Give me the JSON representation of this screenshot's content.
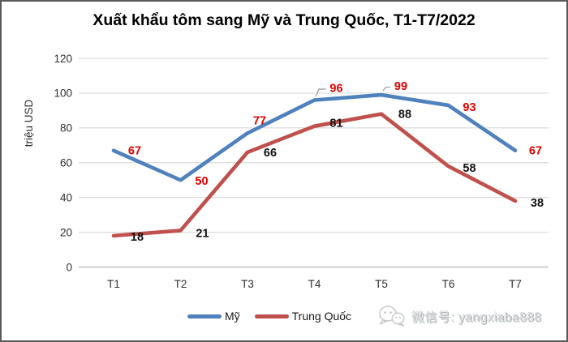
{
  "title": "Xuất khẩu tôm sang Mỹ và Trung Quốc, T1-T7/2022",
  "chart_data": {
    "type": "line",
    "categories": [
      "T1",
      "T2",
      "T3",
      "T4",
      "T5",
      "T6",
      "T7"
    ],
    "series": [
      {
        "name": "Mỹ",
        "color": "#4f81bd",
        "label_color": "#e20000",
        "values": [
          67,
          50,
          77,
          96,
          99,
          93,
          67
        ],
        "label_offsets": [
          [
            26,
            0
          ],
          [
            26,
            1
          ],
          [
            15,
            -16
          ],
          [
            27,
            -15
          ],
          [
            24,
            -11
          ],
          [
            26,
            2
          ],
          [
            25,
            0
          ]
        ],
        "leaders": [
          3,
          4
        ]
      },
      {
        "name": "Trung Quốc",
        "color": "#c0504d",
        "label_color": "#111111",
        "values": [
          18,
          21,
          66,
          81,
          88,
          58,
          38
        ],
        "label_offsets": [
          [
            29,
            1
          ],
          [
            27,
            3
          ],
          [
            28,
            0
          ],
          [
            27,
            -4
          ],
          [
            29,
            0
          ],
          [
            26,
            2
          ],
          [
            27,
            2
          ]
        ],
        "leaders": []
      }
    ],
    "title": "Xuất khẩu tôm sang Mỹ và Trung Quốc, T1-T7/2022",
    "xlabel": "",
    "ylabel": "triệu USD",
    "ylim": [
      0,
      120
    ],
    "yticks": [
      0,
      20,
      40,
      60,
      80,
      100,
      120
    ],
    "grid": true,
    "legend_position": "bottom"
  },
  "watermark": {
    "icon": "wechat-icon",
    "text": "微信号: yangxiaba888"
  }
}
